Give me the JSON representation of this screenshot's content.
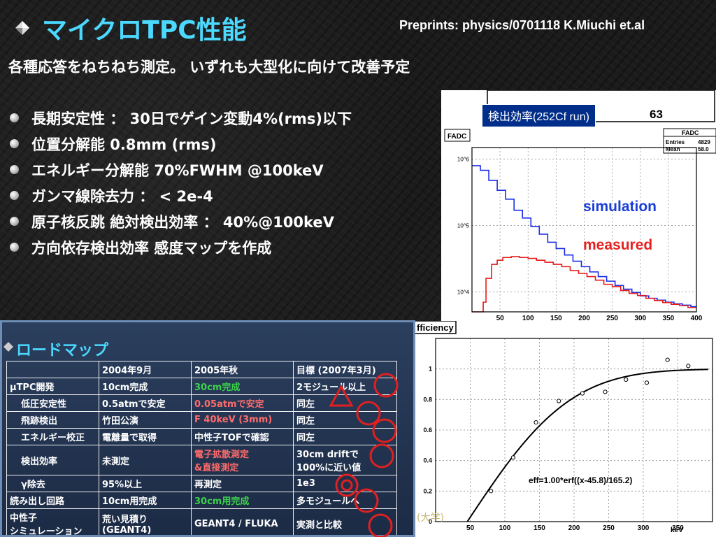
{
  "title": "マイクロTPC性能",
  "preprint": "Preprints: physics/0701118 K.Miuchi et.al",
  "subtitle": "各種応答をねちねち測定。 いずれも大型化に向けて改善予定",
  "bullets": [
    "長期安定性 ： 30日でゲイン変動4%(rms)以下",
    "位置分解能 0.8mm (rms)",
    "エネルギー分解能 70%FWHM @100keV",
    "ガンマ線除去力 ： < 2e-4",
    "原子核反跳 絶対検出効率 ： 40%@100keV",
    "方向依存検出効率 感度マップを作成"
  ],
  "chart1_label": "検出効率(252Cf run)",
  "chart1": {
    "panel_title_fragment": "63",
    "hist_name": "FADC",
    "stats_title": "FADC",
    "stats": [
      {
        "label": "Entries",
        "value": "4829"
      },
      {
        "label": "Mean",
        "value": "58.0"
      }
    ],
    "series_labels": {
      "simulation": "simulation",
      "measured": "measured"
    },
    "colors": {
      "simulation": "#1a2ee6",
      "measured": "#e61a1a",
      "legend_simulation": "#1a3dd6",
      "legend_measured": "#e62020"
    }
  },
  "roadmap": {
    "title": "ロードマップ",
    "header": [
      "",
      "2004年9月",
      "2005年秋",
      "目標 (2007年3月)"
    ],
    "rows": [
      {
        "cells": [
          "μTPC開発",
          "10cm完成",
          "30cm完成",
          "2モジュール以上"
        ],
        "indent": false,
        "color2": "green"
      },
      {
        "cells": [
          "低圧安定性",
          "0.5atmで安定",
          "0.05atmで安定",
          "同左"
        ],
        "indent": true,
        "color2": "red"
      },
      {
        "cells": [
          "飛跡検出",
          "竹田公演",
          "F 40keV (3mm)",
          "同左"
        ],
        "indent": true,
        "color2": "red"
      },
      {
        "cells": [
          "エネルギー校正",
          "電離量で取得",
          "中性子TOFで確認",
          "同左"
        ],
        "indent": true,
        "color2": ""
      },
      {
        "cells": [
          "検出効率",
          "未測定",
          "電子拡散測定\n&直接測定",
          "30cm driftで\n100%に近い値"
        ],
        "indent": true,
        "color2": "red",
        "double": true
      },
      {
        "cells": [
          "γ除去",
          "95%以上",
          "再測定",
          "1e3"
        ],
        "indent": true,
        "color2": ""
      },
      {
        "cells": [
          "読み出し回路",
          "10cm用完成",
          "30cm用完成",
          "多モジュールへ"
        ],
        "indent": false,
        "color2": "green"
      },
      {
        "cells": [
          "中性子\nシミュレーション",
          "荒い見積り\n(GEANT4)",
          "GEANT4 / FLUKA",
          "実測と比較"
        ],
        "indent": false,
        "color2": "",
        "double": true
      }
    ]
  },
  "chart2": {
    "title_fragment": "fficiency",
    "fit_label": "eff=1.00*erf((x-45.8)/165.2)",
    "x_unit": "keV"
  },
  "watermark": "(大学)",
  "chart_data": [
    {
      "type": "line",
      "title": "",
      "xlabel": "",
      "ylabel": "",
      "log_y": true,
      "xlim": [
        0,
        400
      ],
      "ylim": [
        5000,
        1500000
      ],
      "x_ticks": [
        50,
        100,
        150,
        200,
        250,
        300,
        350,
        400
      ],
      "y_ticks": [
        "10^4",
        "10^5",
        "10^6"
      ],
      "grid": true,
      "legend": "right",
      "series": [
        {
          "name": "simulation",
          "x": [
            0,
            15,
            30,
            45,
            60,
            75,
            90,
            105,
            120,
            135,
            150,
            165,
            180,
            195,
            210,
            225,
            240,
            255,
            270,
            285,
            300,
            315,
            330,
            345,
            360,
            375,
            390
          ],
          "values": [
            800000,
            680000,
            480000,
            340000,
            250000,
            170000,
            130000,
            97000,
            74000,
            56000,
            45000,
            36000,
            29000,
            24000,
            20000,
            17000,
            14500,
            12500,
            11000,
            9800,
            8700,
            8000,
            7500,
            7000,
            6600,
            6300,
            6000
          ]
        },
        {
          "name": "measured",
          "x": [
            0,
            10,
            15,
            20,
            25,
            35,
            45,
            55,
            70,
            85,
            100,
            115,
            130,
            145,
            160,
            175,
            190,
            205,
            220,
            235,
            250,
            265,
            280,
            295,
            310,
            325,
            340,
            355,
            370,
            385
          ],
          "values": [
            0,
            0,
            4000,
            7000,
            16000,
            26000,
            30000,
            33000,
            34000,
            33000,
            32000,
            30000,
            28000,
            26000,
            24000,
            21000,
            19000,
            17000,
            15000,
            13000,
            12000,
            10500,
            9500,
            8800,
            8000,
            7400,
            6900,
            6500,
            6200,
            5800
          ]
        }
      ]
    },
    {
      "type": "scatter",
      "title": "",
      "xlabel": "keV",
      "ylabel": "",
      "xlim": [
        0,
        400
      ],
      "ylim": [
        0,
        1.2
      ],
      "x_ticks": [
        50,
        100,
        150,
        200,
        250,
        300,
        350
      ],
      "y_ticks": [
        0,
        0.2,
        0.4,
        0.6,
        0.8,
        1.0
      ],
      "grid": true,
      "series": [
        {
          "name": "",
          "x": [
            80,
            112,
            145,
            178,
            212,
            245,
            275,
            305,
            335,
            365
          ],
          "values": [
            0.2,
            0.42,
            0.65,
            0.79,
            0.84,
            0.85,
            0.93,
            0.91,
            1.06,
            1.02
          ]
        }
      ],
      "fit": {
        "a": 1.0,
        "mu": 45.8,
        "sigma": 165.2
      }
    }
  ]
}
